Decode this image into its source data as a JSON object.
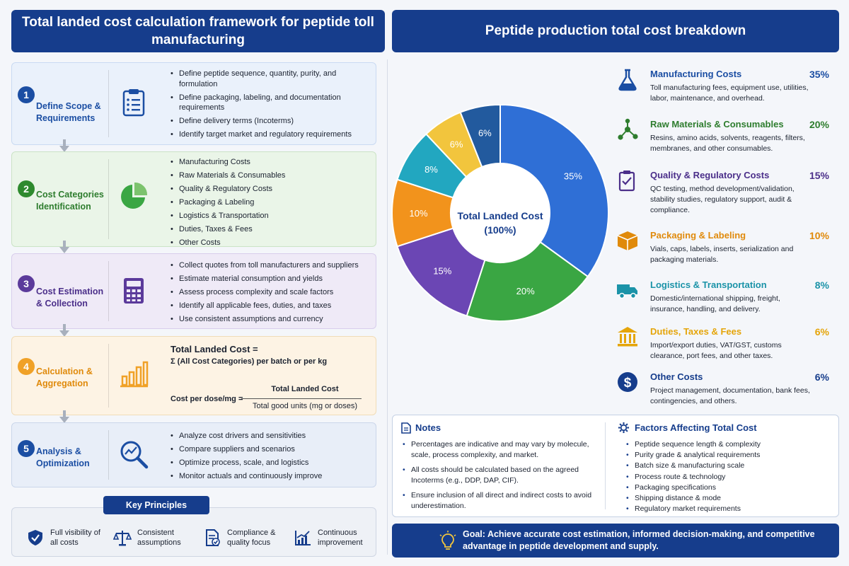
{
  "left_title": "Total landed cost calculation framework for peptide toll manufacturing",
  "right_title": "Peptide production total cost breakdown",
  "steps": [
    {
      "number": "1",
      "title": "Define Scope & Requirements",
      "bullets": [
        "Define peptide sequence, quantity, purity, and formulation",
        "Define packaging, labeling, and documentation requirements",
        "Define delivery terms (Incoterms)",
        "Identify target market and regulatory requirements"
      ]
    },
    {
      "number": "2",
      "title": "Cost Categories Identification",
      "bullets": [
        "Manufacturing Costs",
        "Raw Materials & Consumables",
        "Quality & Regulatory Costs",
        "Packaging & Labeling",
        "Logistics & Transportation",
        "Duties, Taxes & Fees",
        "Other Costs"
      ]
    },
    {
      "number": "3",
      "title": "Cost Estimation & Collection",
      "bullets": [
        "Collect quotes from toll manufacturers and suppliers",
        "Estimate material consumption and yields",
        "Assess process complexity and scale factors",
        "Identify all applicable fees, duties, and taxes",
        "Use consistent assumptions and currency"
      ]
    },
    {
      "number": "4",
      "title": "Calculation & Aggregation",
      "formula": {
        "line1": "Total Landed Cost =",
        "line2": "Σ (All Cost Categories) per batch or per kg",
        "lhs": "Cost per dose/mg =",
        "numerator": "Total Landed Cost",
        "denominator": "Total good units (mg or doses)"
      }
    },
    {
      "number": "5",
      "title": "Analysis & Optimization",
      "bullets": [
        "Analyze cost drivers and sensitivities",
        "Compare suppliers and scenarios",
        "Optimize process, scale, and logistics",
        "Monitor actuals and continuously improve"
      ]
    }
  ],
  "key_principles": {
    "title": "Key Principles",
    "items": [
      "Full visibility of all costs",
      "Consistent assumptions",
      "Compliance & quality focus",
      "Continuous improvement"
    ]
  },
  "chart_data": {
    "type": "pie",
    "center_label": "Total Landed Cost (100%)",
    "categories": [
      "Manufacturing Costs",
      "Raw Materials & Consumables",
      "Quality & Regulatory Costs",
      "Packaging & Labeling",
      "Logistics & Transportation",
      "Duties, Taxes & Fees",
      "Other Costs"
    ],
    "values": [
      35,
      20,
      15,
      10,
      8,
      6,
      6
    ],
    "labels": [
      "35%",
      "20%",
      "15%",
      "10%",
      "8%",
      "6%",
      "6%"
    ],
    "colors": [
      "#2f6fd6",
      "#3aa643",
      "#6b46b4",
      "#f2931c",
      "#22a7c0",
      "#f2c53d",
      "#225a9e"
    ],
    "descriptions": [
      "Toll manufacturing fees, equipment use, utilities, labor, maintenance, and overhead.",
      "Resins, amino acids, solvents, reagents, filters, membranes, and other consumables.",
      "QC testing, method development/validation, stability studies, regulatory support, audit & compliance.",
      "Vials, caps, labels, inserts, serialization and packaging materials.",
      "Domestic/international shipping, freight, insurance, handling, and delivery.",
      "Import/export duties, VAT/GST, customs clearance, port fees, and other taxes.",
      "Project management, documentation, bank fees, contingencies, and others."
    ],
    "legend_colors": [
      "#1b4ea3",
      "#2e7d2e",
      "#4b2f8a",
      "#e08a0b",
      "#1b93a8",
      "#e5a50a",
      "#163d8c"
    ],
    "icons": [
      "flask-icon",
      "molecule-icon",
      "clipboard-check-icon",
      "box-icon",
      "truck-icon",
      "bank-icon",
      "dollar-icon"
    ]
  },
  "notes": {
    "title": "Notes",
    "items": [
      "Percentages are indicative and may vary by molecule, scale, process complexity, and market.",
      "All costs should be calculated based on the agreed Incoterms (e.g., DDP, DAP, CIF).",
      "Ensure inclusion of all direct and indirect costs to avoid underestimation."
    ]
  },
  "factors": {
    "title": "Factors Affecting Total Cost",
    "items": [
      "Peptide sequence length & complexity",
      "Purity grade & analytical requirements",
      "Batch size & manufacturing scale",
      "Process route & technology",
      "Packaging specifications",
      "Shipping distance & mode",
      "Regulatory market requirements"
    ]
  },
  "goal": "Goal: Achieve accurate cost estimation, informed decision-making, and competitive advantage in peptide development and supply."
}
